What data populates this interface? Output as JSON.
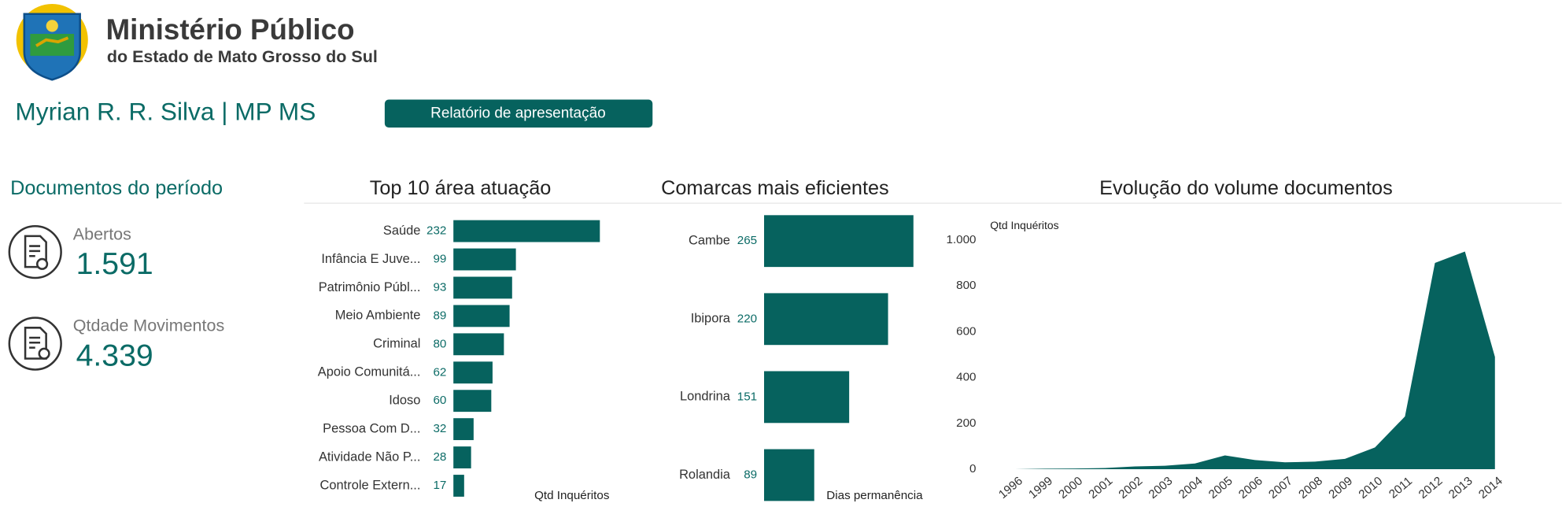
{
  "header": {
    "org_name": "Ministério Público",
    "org_subtitle": "do Estado de Mato Grosso do Sul",
    "user": "Myrian R. R. Silva | MP MS",
    "button": "Relatório de apresentação"
  },
  "summary": {
    "title": "Documentos do período",
    "kpis": [
      {
        "label": "Abertos",
        "value": "1.591"
      },
      {
        "label": "Qtdade Movimentos",
        "value": "4.339"
      }
    ]
  },
  "chart_data": [
    {
      "type": "bar",
      "orientation": "horizontal",
      "title": "Top 10 área atuação",
      "x_label": "Qtd Inquéritos",
      "color": "#06625e",
      "categories": [
        "Saúde",
        "Infância E Juve...",
        "Patrimônio Públ...",
        "Meio Ambiente",
        "Criminal",
        "Apoio Comunitá...",
        "Idoso",
        "Pessoa Com D...",
        "Atividade Não P...",
        "Controle Extern..."
      ],
      "values": [
        232,
        99,
        93,
        89,
        80,
        62,
        60,
        32,
        28,
        17
      ]
    },
    {
      "type": "bar",
      "orientation": "horizontal",
      "title": "Comarcas mais eficientes",
      "x_label": "Dias permanência",
      "color": "#06625e",
      "categories": [
        "Cambe",
        "Ibipora",
        "Londrina",
        "Rolandia"
      ],
      "values": [
        265,
        220,
        151,
        89
      ]
    },
    {
      "type": "area",
      "title": "Evolução do volume documentos",
      "y_label": "Qtd Inquéritos",
      "color": "#06625e",
      "categories": [
        "1996",
        "1999",
        "2000",
        "2001",
        "2002",
        "2003",
        "2004",
        "2005",
        "2006",
        "2007",
        "2008",
        "2009",
        "2010",
        "2011",
        "2012",
        "2013",
        "2014"
      ],
      "values": [
        0,
        2,
        3,
        5,
        12,
        15,
        25,
        60,
        40,
        30,
        33,
        45,
        95,
        230,
        900,
        950,
        490
      ],
      "ylim": [
        0,
        1000
      ],
      "yticks": [
        0,
        200,
        400,
        600,
        800,
        {
          "value": 1000,
          "label": "1.000"
        }
      ]
    }
  ]
}
